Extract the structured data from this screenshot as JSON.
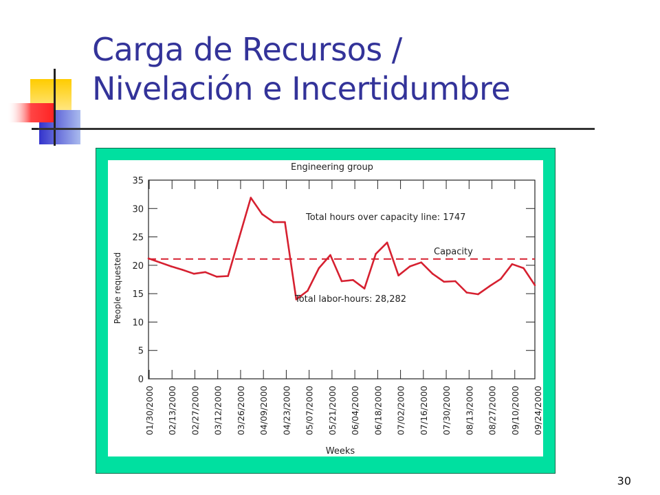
{
  "slide": {
    "title_line1": "Carga de Recursos /",
    "title_line2": "Nivelación e Incertidumbre",
    "page_number": "30"
  },
  "colors": {
    "title": "#333399",
    "frame": "#00e0a0",
    "series": "#d62030",
    "logo_yellow": "#ffd000",
    "logo_blue": "#3333cc",
    "logo_red": "#ff3333"
  },
  "chart_data": {
    "type": "line",
    "title": "Engineering group",
    "xlabel": "Weeks",
    "ylabel": "People requested",
    "ylim": [
      0,
      35
    ],
    "yticks": [
      0,
      5,
      10,
      15,
      20,
      25,
      30,
      35
    ],
    "xtick_labels": [
      "01/30/2000",
      "02/13/2000",
      "02/27/2000",
      "03/12/2000",
      "03/26/2000",
      "04/09/2000",
      "04/23/2000",
      "05/07/2000",
      "05/21/2000",
      "06/04/2000",
      "06/18/2000",
      "07/02/2000",
      "07/16/2000",
      "07/30/2000",
      "08/13/2000",
      "08/27/2000",
      "09/10/2000",
      "09/24/2000"
    ],
    "series": [
      {
        "values": [
          21.2,
          20.5,
          19.8,
          19.2,
          18.5,
          18.8,
          18.0,
          18.1,
          25.0,
          31.9,
          29.0,
          27.6,
          27.6,
          14.0,
          15.5,
          19.5,
          21.8,
          17.2,
          17.4,
          15.9,
          22.0,
          24.0,
          18.2,
          19.8,
          20.5,
          18.5,
          17.1,
          17.2,
          15.2,
          14.9,
          16.3,
          17.6,
          20.2,
          19.5,
          16.5
        ]
      }
    ],
    "capacity": {
      "label": "Capacity",
      "value": 21.1
    },
    "annotations": [
      "Total hours over capacity line: 1747",
      "Total labor-hours: 28,282"
    ],
    "grid": false
  }
}
